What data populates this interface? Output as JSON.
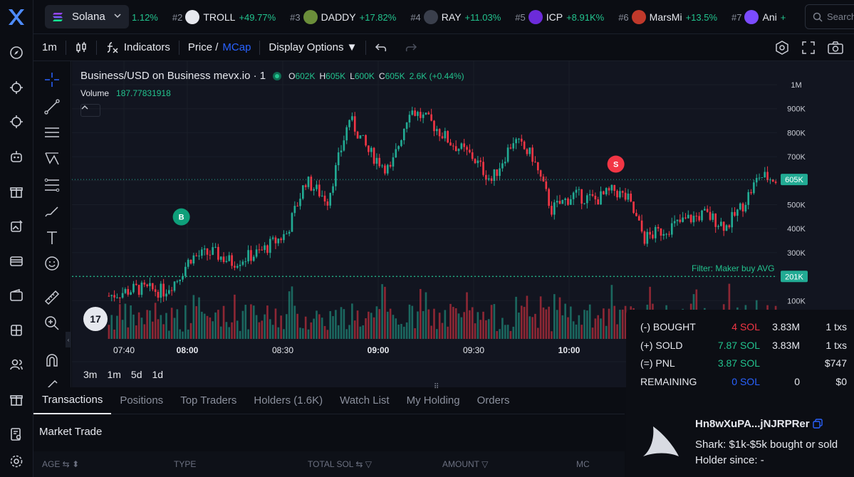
{
  "topbar": {
    "chain_label": "Solana",
    "ticker": [
      {
        "rank": "",
        "symbol": "",
        "change": "1.12%",
        "color": ""
      },
      {
        "rank": "#2",
        "symbol": "TROLL",
        "change": "+49.77%",
        "color": "#e6e8ee"
      },
      {
        "rank": "#3",
        "symbol": "DADDY",
        "change": "+17.82%",
        "color": "#6b8e3a"
      },
      {
        "rank": "#4",
        "symbol": "RAY",
        "change": "+11.03%",
        "color": "#3a3f4c"
      },
      {
        "rank": "#5",
        "symbol": "ICP",
        "change": "+8.91K%",
        "color": "#6c2bd9"
      },
      {
        "rank": "#6",
        "symbol": "MarsMi",
        "change": "+13.5%",
        "color": "#c0392b"
      },
      {
        "rank": "#7",
        "symbol": "Ani",
        "change": "+",
        "color": "#7b4bff"
      }
    ],
    "search_placeholder": "Search"
  },
  "toolbar": {
    "interval": "1m",
    "indicators_label": "Indicators",
    "price_label": "Price /",
    "mcap_label": "MCap",
    "display_options_label": "Display Options ▼"
  },
  "chart": {
    "symbol_title": "Business/USD on Business mevx.io · 1",
    "ohlc": {
      "o_label": "O",
      "o": "602K",
      "h_label": "H",
      "h": "605K",
      "l_label": "L",
      "l": "600K",
      "c_label": "C",
      "c": "605K",
      "change": "2.6K (+0.44%)"
    },
    "volume_label": "Volume",
    "volume_value": "187.77831918",
    "filter_label": "Filter: Maker buy AVG",
    "buy_marker": "B",
    "sell_marker": "S",
    "tv_logo": "17",
    "ranges": [
      "3m",
      "1m",
      "5d",
      "1d"
    ],
    "colors": {
      "up": "#22ab94",
      "down": "#f23645",
      "accent": "#22c38e"
    }
  },
  "chart_data": {
    "type": "candlestick",
    "y_unit": "MCap (USD)",
    "y_ticks": [
      "1M",
      "900K",
      "800K",
      "700K",
      "600K",
      "500K",
      "400K",
      "300K",
      "200K",
      "100K"
    ],
    "x_ticks": [
      "07:40",
      "08:00",
      "08:30",
      "09:00",
      "09:30",
      "10:00"
    ],
    "last_price_label": "605K",
    "filter_price_label": "201K",
    "last_value": 605000,
    "filter_value": 201000,
    "anchors": [
      [
        0,
        120000
      ],
      [
        10,
        150000
      ],
      [
        20,
        140000
      ],
      [
        25,
        190000
      ],
      [
        30,
        280000
      ],
      [
        38,
        300000
      ],
      [
        45,
        260000
      ],
      [
        55,
        300000
      ],
      [
        65,
        380000
      ],
      [
        72,
        600000
      ],
      [
        80,
        520000
      ],
      [
        88,
        860000
      ],
      [
        95,
        720000
      ],
      [
        103,
        640000
      ],
      [
        110,
        900000
      ],
      [
        118,
        840000
      ],
      [
        125,
        760000
      ],
      [
        133,
        700000
      ],
      [
        140,
        600000
      ],
      [
        148,
        770000
      ],
      [
        155,
        700000
      ],
      [
        162,
        480000
      ],
      [
        170,
        540000
      ],
      [
        178,
        520000
      ],
      [
        185,
        560000
      ],
      [
        190,
        520000
      ],
      [
        196,
        360000
      ],
      [
        204,
        400000
      ],
      [
        212,
        440000
      ],
      [
        218,
        460000
      ],
      [
        226,
        410000
      ],
      [
        232,
        500000
      ],
      [
        238,
        620000
      ],
      [
        244,
        605000
      ]
    ],
    "markers": [
      {
        "type": "B",
        "index": 27,
        "value": 360000
      },
      {
        "type": "S",
        "index": 186,
        "value": 580000
      }
    ]
  },
  "bottom": {
    "tabs": [
      "Transactions",
      "Positions",
      "Top Traders",
      "Holders (1.6K)",
      "Watch List",
      "My Holding",
      "Orders"
    ],
    "market_trade_label": "Market Trade",
    "columns": [
      "AGE ⇆ ⬍",
      "TYPE",
      "TOTAL  SOL ⇆ ▽",
      "AMOUNT ▽",
      "MC"
    ]
  },
  "pnl": {
    "rows": [
      {
        "label": "(-) BOUGHT",
        "sol": "4 SOL",
        "amount": "3.83M",
        "txs": "1 txs"
      },
      {
        "label": "(+) SOLD",
        "sol": "7.87 SOL",
        "amount": "3.83M",
        "txs": "1 txs"
      },
      {
        "label": "(=) PNL",
        "sol": "3.87 SOL",
        "amount": "",
        "txs": "$747"
      },
      {
        "label": "REMAINING",
        "sol": "0 SOL",
        "amount": "0",
        "txs": "$0"
      }
    ],
    "wallet": "Hn8wXuPA...jNJRPRer",
    "shark": "Shark: $1k-$5k bought or sold",
    "holder_since": "Holder since: -"
  }
}
